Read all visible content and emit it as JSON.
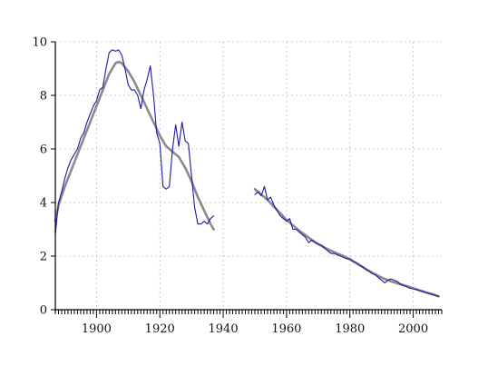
{
  "chart_data": {
    "type": "line",
    "title": "",
    "xlabel": "",
    "ylabel": "",
    "xlim": [
      1887,
      2009
    ],
    "ylim": [
      0,
      10
    ],
    "x_ticks": [
      1900,
      1920,
      1940,
      1960,
      1980,
      2000
    ],
    "x_tick_labels": [
      "1900",
      "1920",
      "1940",
      "1960",
      "1980",
      "2000"
    ],
    "y_ticks": [
      0,
      2,
      4,
      6,
      8,
      10
    ],
    "y_tick_labels": [
      "0",
      "2",
      "4",
      "6",
      "8",
      "10"
    ],
    "grid": true,
    "legend": "none",
    "colors": {
      "series_actual": "#1a1aa8",
      "series_trend": "#8a8a8a"
    },
    "series": [
      {
        "values_segments": [
          [
            [
              1887,
              2.8
            ],
            [
              1888,
              4.0
            ],
            [
              1889,
              4.4
            ],
            [
              1890,
              4.9
            ],
            [
              1891,
              5.3
            ],
            [
              1892,
              5.6
            ],
            [
              1893,
              5.8
            ],
            [
              1894,
              6.0
            ],
            [
              1895,
              6.4
            ],
            [
              1896,
              6.6
            ],
            [
              1897,
              7.0
            ],
            [
              1898,
              7.3
            ],
            [
              1899,
              7.6
            ],
            [
              1900,
              7.8
            ],
            [
              1901,
              8.2
            ],
            [
              1902,
              8.3
            ],
            [
              1903,
              9.0
            ],
            [
              1904,
              9.6
            ],
            [
              1905,
              9.7
            ],
            [
              1906,
              9.65
            ],
            [
              1907,
              9.7
            ],
            [
              1908,
              9.5
            ],
            [
              1909,
              9.0
            ],
            [
              1910,
              8.4
            ],
            [
              1911,
              8.2
            ],
            [
              1912,
              8.2
            ],
            [
              1913,
              8.0
            ],
            [
              1914,
              7.5
            ],
            [
              1915,
              8.2
            ],
            [
              1916,
              8.6
            ],
            [
              1917,
              9.1
            ],
            [
              1918,
              8.0
            ],
            [
              1919,
              6.6
            ],
            [
              1920,
              6.2
            ],
            [
              1921,
              4.6
            ],
            [
              1922,
              4.5
            ],
            [
              1923,
              4.6
            ],
            [
              1924,
              6.0
            ],
            [
              1925,
              6.9
            ],
            [
              1926,
              6.1
            ],
            [
              1927,
              7.0
            ],
            [
              1928,
              6.3
            ],
            [
              1929,
              6.2
            ],
            [
              1930,
              5.0
            ],
            [
              1931,
              3.8
            ],
            [
              1932,
              3.2
            ],
            [
              1933,
              3.2
            ],
            [
              1934,
              3.3
            ],
            [
              1935,
              3.2
            ],
            [
              1936,
              3.4
            ],
            [
              1937,
              3.5
            ]
          ],
          [
            [
              1950,
              4.3
            ],
            [
              1951,
              4.4
            ],
            [
              1952,
              4.25
            ],
            [
              1953,
              4.6
            ],
            [
              1954,
              4.1
            ],
            [
              1955,
              4.2
            ],
            [
              1956,
              3.9
            ],
            [
              1957,
              3.7
            ],
            [
              1958,
              3.5
            ],
            [
              1959,
              3.4
            ],
            [
              1960,
              3.3
            ],
            [
              1961,
              3.4
            ],
            [
              1962,
              3.0
            ],
            [
              1963,
              3.0
            ],
            [
              1964,
              2.9
            ],
            [
              1965,
              2.8
            ],
            [
              1966,
              2.7
            ],
            [
              1967,
              2.5
            ],
            [
              1968,
              2.6
            ],
            [
              1969,
              2.5
            ],
            [
              1970,
              2.45
            ],
            [
              1971,
              2.4
            ],
            [
              1972,
              2.3
            ],
            [
              1973,
              2.2
            ],
            [
              1974,
              2.1
            ],
            [
              1975,
              2.1
            ],
            [
              1976,
              2.05
            ],
            [
              1977,
              2.0
            ],
            [
              1978,
              1.95
            ],
            [
              1979,
              1.9
            ],
            [
              1980,
              1.9
            ],
            [
              1981,
              1.8
            ],
            [
              1982,
              1.75
            ],
            [
              1983,
              1.65
            ],
            [
              1984,
              1.6
            ],
            [
              1985,
              1.5
            ],
            [
              1986,
              1.45
            ],
            [
              1987,
              1.35
            ],
            [
              1988,
              1.3
            ],
            [
              1989,
              1.2
            ],
            [
              1990,
              1.1
            ],
            [
              1991,
              1.0
            ],
            [
              1992,
              1.1
            ],
            [
              1993,
              1.15
            ],
            [
              1994,
              1.1
            ],
            [
              1995,
              1.05
            ],
            [
              1996,
              0.95
            ],
            [
              1997,
              0.9
            ],
            [
              1998,
              0.85
            ],
            [
              1999,
              0.8
            ],
            [
              2000,
              0.78
            ],
            [
              2001,
              0.75
            ],
            [
              2002,
              0.72
            ],
            [
              2003,
              0.68
            ],
            [
              2004,
              0.64
            ],
            [
              2005,
              0.6
            ],
            [
              2006,
              0.57
            ],
            [
              2007,
              0.53
            ],
            [
              2008,
              0.5
            ]
          ]
        ]
      },
      {
        "values_segments": [
          [
            [
              1887,
              3.3
            ],
            [
              1888,
              3.9
            ],
            [
              1890,
              4.6
            ],
            [
              1892,
              5.2
            ],
            [
              1894,
              5.8
            ],
            [
              1896,
              6.4
            ],
            [
              1898,
              7.0
            ],
            [
              1900,
              7.6
            ],
            [
              1902,
              8.2
            ],
            [
              1904,
              8.8
            ],
            [
              1906,
              9.2
            ],
            [
              1907,
              9.25
            ],
            [
              1908,
              9.2
            ],
            [
              1910,
              8.9
            ],
            [
              1912,
              8.5
            ],
            [
              1914,
              8.0
            ],
            [
              1916,
              7.5
            ],
            [
              1918,
              7.0
            ],
            [
              1920,
              6.5
            ],
            [
              1922,
              6.1
            ],
            [
              1924,
              5.9
            ],
            [
              1926,
              5.7
            ],
            [
              1928,
              5.3
            ],
            [
              1930,
              4.8
            ],
            [
              1932,
              4.2
            ],
            [
              1934,
              3.7
            ],
            [
              1936,
              3.2
            ],
            [
              1937,
              3.0
            ]
          ],
          [
            [
              1950,
              4.5
            ],
            [
              1952,
              4.3
            ],
            [
              1954,
              4.1
            ],
            [
              1956,
              3.85
            ],
            [
              1958,
              3.6
            ],
            [
              1960,
              3.35
            ],
            [
              1962,
              3.15
            ],
            [
              1964,
              2.95
            ],
            [
              1966,
              2.78
            ],
            [
              1968,
              2.6
            ],
            [
              1970,
              2.45
            ],
            [
              1972,
              2.32
            ],
            [
              1974,
              2.2
            ],
            [
              1976,
              2.1
            ],
            [
              1978,
              2.0
            ],
            [
              1980,
              1.88
            ],
            [
              1982,
              1.74
            ],
            [
              1984,
              1.6
            ],
            [
              1986,
              1.45
            ],
            [
              1988,
              1.32
            ],
            [
              1990,
              1.2
            ],
            [
              1992,
              1.1
            ],
            [
              1994,
              1.02
            ],
            [
              1996,
              0.95
            ],
            [
              1998,
              0.88
            ],
            [
              2000,
              0.8
            ],
            [
              2002,
              0.72
            ],
            [
              2004,
              0.65
            ],
            [
              2006,
              0.58
            ],
            [
              2008,
              0.5
            ]
          ]
        ]
      }
    ]
  }
}
